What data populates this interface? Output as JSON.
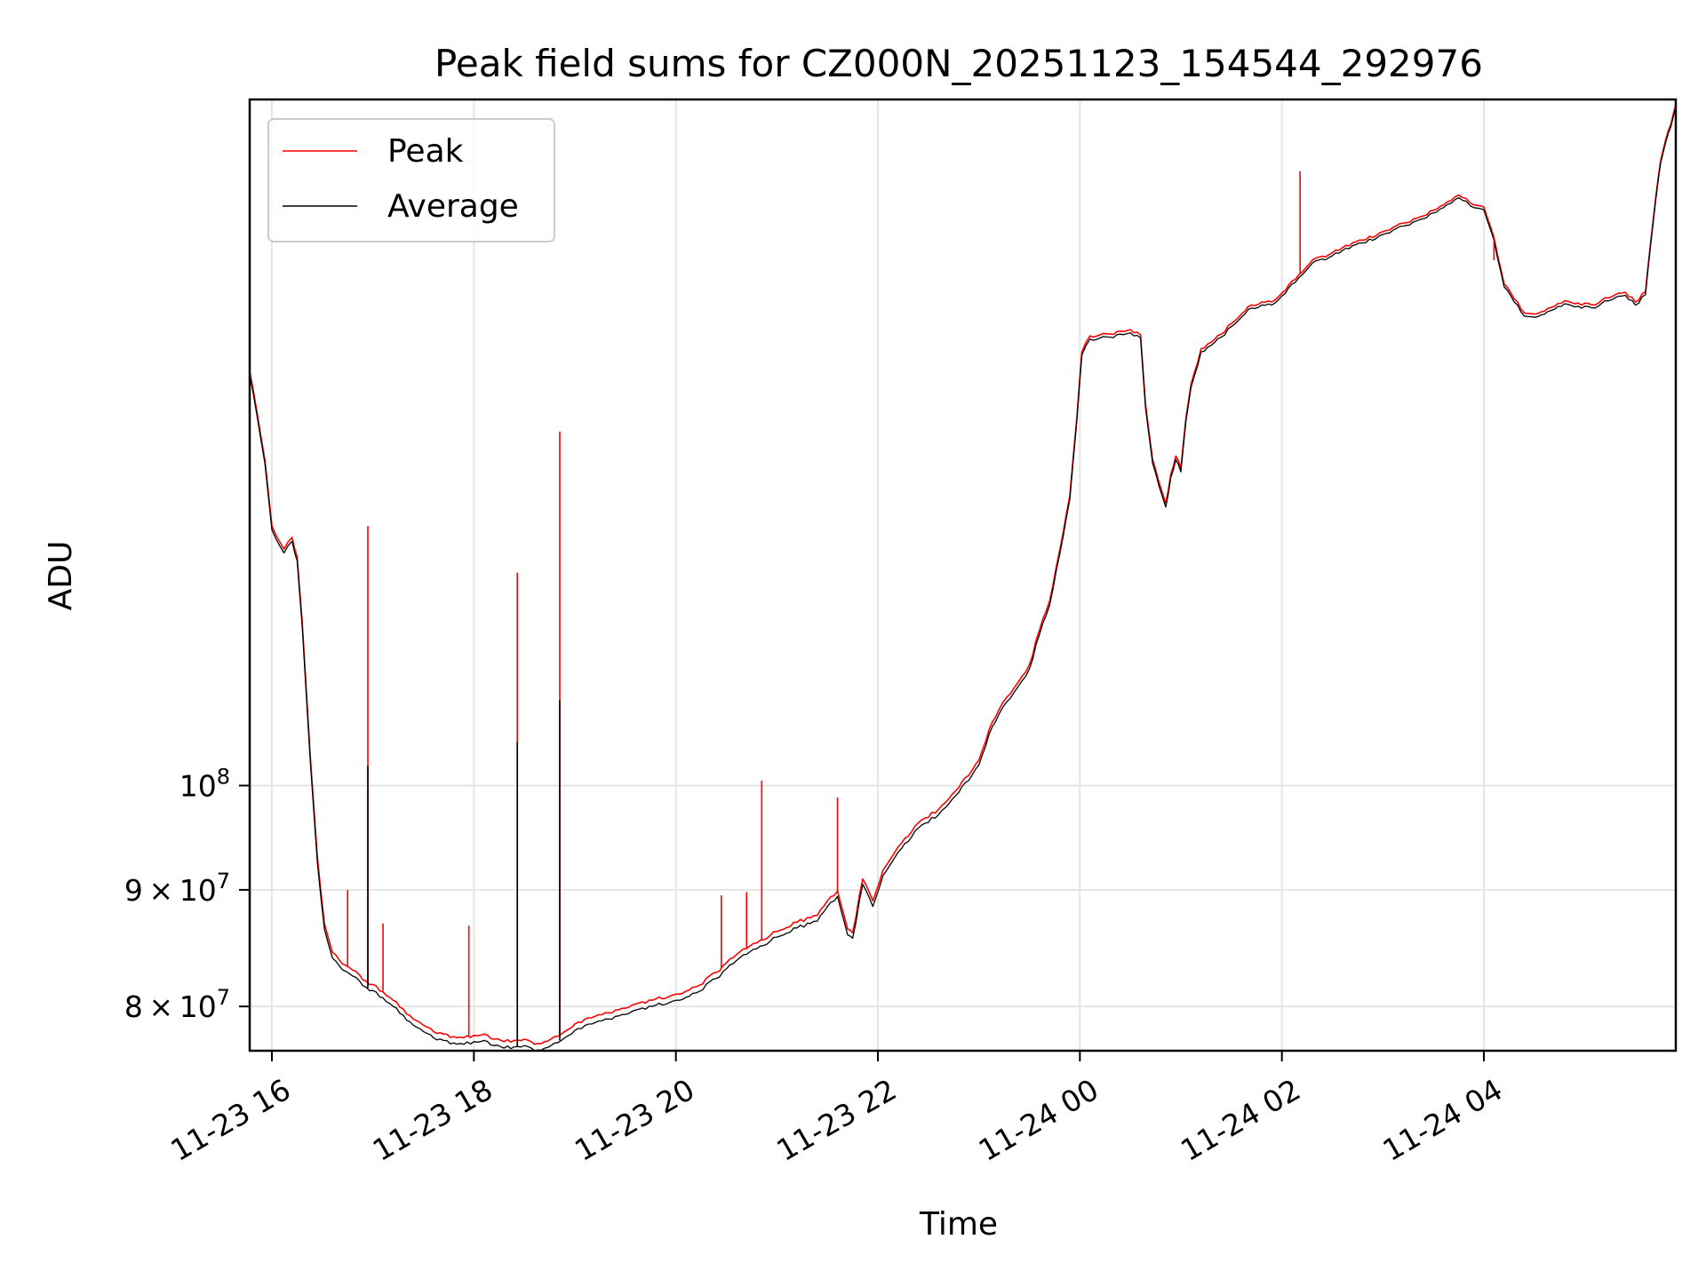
{
  "chart_data": {
    "type": "line",
    "title": "Peak field sums for CZ000N_20251123_154544_292976",
    "xlabel": "Time",
    "ylabel": "ADU",
    "y_scale": "log",
    "x_unit": "hours since 2025-11-23 00:00",
    "xlim": [
      15.78,
      29.9
    ],
    "ylim": [
      76500000,
      200000000
    ],
    "grid": true,
    "legend_position": "upper-left",
    "x_ticks": [
      {
        "value": 16,
        "label": "11-23 16"
      },
      {
        "value": 18,
        "label": "11-23 18"
      },
      {
        "value": 20,
        "label": "11-23 20"
      },
      {
        "value": 22,
        "label": "11-23 22"
      },
      {
        "value": 24,
        "label": "11-24 00"
      },
      {
        "value": 26,
        "label": "11-24 02"
      },
      {
        "value": 28,
        "label": "11-24 04"
      }
    ],
    "y_ticks": [
      {
        "value": 80000000,
        "base": "8",
        "times": "×",
        "ten": "10",
        "exp": "7"
      },
      {
        "value": 90000000,
        "base": "9",
        "times": "×",
        "ten": "10",
        "exp": "7"
      },
      {
        "value": 100000000,
        "base": "",
        "times": "",
        "ten": "10",
        "exp": "8"
      }
    ],
    "series": [
      {
        "name": "Peak",
        "color": "#ff0000",
        "x": [
          15.78,
          15.85,
          15.93,
          16.0,
          16.12,
          16.2,
          16.25,
          16.3,
          16.38,
          16.45,
          16.52,
          16.6,
          16.7,
          16.8,
          16.9,
          17.0,
          17.1,
          17.2,
          17.3,
          17.4,
          17.5,
          17.6,
          17.7,
          17.8,
          17.9,
          18.0,
          18.1,
          18.2,
          18.3,
          18.4,
          18.5,
          18.6,
          18.7,
          18.8,
          18.9,
          19.0,
          19.2,
          19.4,
          19.6,
          19.8,
          20.0,
          20.2,
          20.4,
          20.6,
          20.8,
          21.0,
          21.2,
          21.4,
          21.5,
          21.6,
          21.7,
          21.75,
          21.85,
          21.95,
          22.05,
          22.2,
          22.4,
          22.6,
          22.8,
          23.0,
          23.1,
          23.2,
          23.35,
          23.5,
          23.6,
          23.7,
          23.8,
          23.9,
          23.97,
          24.02,
          24.1,
          24.3,
          24.5,
          24.6,
          24.65,
          24.72,
          24.78,
          24.85,
          24.9,
          24.95,
          25.0,
          25.05,
          25.1,
          25.2,
          25.3,
          25.4,
          25.5,
          25.6,
          25.7,
          25.8,
          25.9,
          26.0,
          26.1,
          26.2,
          26.3,
          26.4,
          26.5,
          26.6,
          26.8,
          27.0,
          27.2,
          27.4,
          27.6,
          27.75,
          27.9,
          28.0,
          28.1,
          28.2,
          28.3,
          28.4,
          28.5,
          28.6,
          28.7,
          28.8,
          28.9,
          29.0,
          29.1,
          29.2,
          29.3,
          29.4,
          29.5,
          29.6,
          29.65,
          29.7,
          29.75,
          29.8,
          29.85,
          29.9
        ],
        "y": [
          152000000,
          146000000,
          139000000,
          130000000,
          127000000,
          128500000,
          126000000,
          118000000,
          103000000,
          93000000,
          87000000,
          84500000,
          83500000,
          83000000,
          82200000,
          81800000,
          81200000,
          80500000,
          79800000,
          79000000,
          78500000,
          78000000,
          77800000,
          77600000,
          77500000,
          77700000,
          77800000,
          77400000,
          77200000,
          77300000,
          77400000,
          77000000,
          77200000,
          77600000,
          78000000,
          78600000,
          79200000,
          79700000,
          80200000,
          80600000,
          81000000,
          81600000,
          82800000,
          84300000,
          85300000,
          86300000,
          87100000,
          87700000,
          89000000,
          89900000,
          86500000,
          86200000,
          91000000,
          89000000,
          91800000,
          94000000,
          96300000,
          97600000,
          99800000,
          102600000,
          105800000,
          108000000,
          110400000,
          113000000,
          117000000,
          120500000,
          126800000,
          134000000,
          145000000,
          155000000,
          157500000,
          157800000,
          158500000,
          157700000,
          147000000,
          139000000,
          136000000,
          133000000,
          137000000,
          139500000,
          137800000,
          145000000,
          150000000,
          155500000,
          156500000,
          157800000,
          159500000,
          161000000,
          162500000,
          163000000,
          163000000,
          164500000,
          166500000,
          168000000,
          170000000,
          170700000,
          171300000,
          172200000,
          173500000,
          175000000,
          176500000,
          177800000,
          179800000,
          181600000,
          179800000,
          179400000,
          174000000,
          166000000,
          163500000,
          161200000,
          161000000,
          161500000,
          162300000,
          163200000,
          162700000,
          162800000,
          162500000,
          163700000,
          164200000,
          164600000,
          163000000,
          164700000,
          173000000,
          181000000,
          188000000,
          192000000,
          195000000,
          199000000
        ]
      },
      {
        "name": "Average",
        "color": "#000000",
        "x": [
          15.78,
          15.85,
          15.93,
          16.0,
          16.12,
          16.2,
          16.25,
          16.3,
          16.38,
          16.45,
          16.52,
          16.6,
          16.7,
          16.8,
          16.9,
          17.0,
          17.1,
          17.2,
          17.3,
          17.4,
          17.5,
          17.6,
          17.7,
          17.8,
          17.9,
          18.0,
          18.1,
          18.2,
          18.3,
          18.4,
          18.5,
          18.6,
          18.7,
          18.8,
          18.9,
          19.0,
          19.2,
          19.4,
          19.6,
          19.8,
          20.0,
          20.2,
          20.4,
          20.6,
          20.8,
          21.0,
          21.2,
          21.4,
          21.5,
          21.6,
          21.7,
          21.75,
          21.85,
          21.95,
          22.05,
          22.2,
          22.4,
          22.6,
          22.8,
          23.0,
          23.1,
          23.2,
          23.35,
          23.5,
          23.6,
          23.7,
          23.8,
          23.9,
          23.97,
          24.02,
          24.1,
          24.3,
          24.5,
          24.6,
          24.65,
          24.72,
          24.78,
          24.85,
          24.9,
          24.95,
          25.0,
          25.05,
          25.1,
          25.2,
          25.3,
          25.4,
          25.5,
          25.6,
          25.7,
          25.8,
          25.9,
          26.0,
          26.1,
          26.2,
          26.3,
          26.4,
          26.5,
          26.6,
          26.8,
          27.0,
          27.2,
          27.4,
          27.6,
          27.75,
          27.9,
          28.0,
          28.1,
          28.2,
          28.3,
          28.4,
          28.5,
          28.6,
          28.7,
          28.8,
          28.9,
          29.0,
          29.1,
          29.2,
          29.3,
          29.4,
          29.5,
          29.6,
          29.65,
          29.7,
          29.75,
          29.8,
          29.85,
          29.9
        ],
        "y": [
          151500000,
          145500000,
          138500000,
          129500000,
          126500000,
          128000000,
          125500000,
          117500000,
          102500000,
          92500000,
          86500000,
          84000000,
          83000000,
          82500000,
          81700000,
          81300000,
          80700000,
          80000000,
          79300000,
          78500000,
          78000000,
          77500000,
          77300000,
          77100000,
          77000000,
          77200000,
          77300000,
          76900000,
          76700000,
          76800000,
          76900000,
          76500000,
          76700000,
          77100000,
          77500000,
          78100000,
          78700000,
          79200000,
          79700000,
          80100000,
          80500000,
          81100000,
          82300000,
          83800000,
          84800000,
          85800000,
          86600000,
          87200000,
          88500000,
          89400000,
          86000000,
          85700000,
          90500000,
          88500000,
          91300000,
          93500000,
          95800000,
          97100000,
          99300000,
          102100000,
          105300000,
          107500000,
          109900000,
          112500000,
          116500000,
          120000000,
          126300000,
          133500000,
          144500000,
          154500000,
          157000000,
          157300000,
          158000000,
          157200000,
          146500000,
          138500000,
          135500000,
          132500000,
          136500000,
          139000000,
          137300000,
          144500000,
          149500000,
          155000000,
          156000000,
          157300000,
          159000000,
          160500000,
          162000000,
          162500000,
          162500000,
          164000000,
          166000000,
          167500000,
          169500000,
          170200000,
          170800000,
          171700000,
          173000000,
          174500000,
          176000000,
          177300000,
          179300000,
          181100000,
          179300000,
          178900000,
          173500000,
          165500000,
          163000000,
          160700000,
          160500000,
          161000000,
          161800000,
          162700000,
          162200000,
          162300000,
          162000000,
          163200000,
          163700000,
          164100000,
          162500000,
          164200000,
          172500000,
          180500000,
          187500000,
          191500000,
          194500000,
          198500000
        ]
      }
    ],
    "spikes": [
      {
        "series": "Peak",
        "x": 16.95,
        "y": 130000000
      },
      {
        "series": "Average",
        "x": 16.95,
        "y": 102000000
      },
      {
        "series": "Peak",
        "x": 18.43,
        "y": 124000000
      },
      {
        "series": "Average",
        "x": 18.43,
        "y": 104500000
      },
      {
        "series": "Peak",
        "x": 18.85,
        "y": 143000000
      },
      {
        "series": "Average",
        "x": 18.85,
        "y": 109000000
      },
      {
        "series": "Peak",
        "x": 16.75,
        "y": 90000000
      },
      {
        "series": "Peak",
        "x": 17.1,
        "y": 87000000
      },
      {
        "series": "Peak",
        "x": 17.95,
        "y": 86800000
      },
      {
        "series": "Peak",
        "x": 20.85,
        "y": 100500000
      },
      {
        "series": "Peak",
        "x": 21.6,
        "y": 98800000
      },
      {
        "series": "Peak",
        "x": 20.45,
        "y": 89500000
      },
      {
        "series": "Peak",
        "x": 20.7,
        "y": 89800000
      },
      {
        "series": "Peak",
        "x": 26.18,
        "y": 186000000
      },
      {
        "series": "Peak",
        "x": 28.1,
        "y": 170000000
      }
    ]
  },
  "legend": {
    "items": [
      {
        "label": "Peak",
        "color": "#ff0000"
      },
      {
        "label": "Average",
        "color": "#000000"
      }
    ]
  }
}
